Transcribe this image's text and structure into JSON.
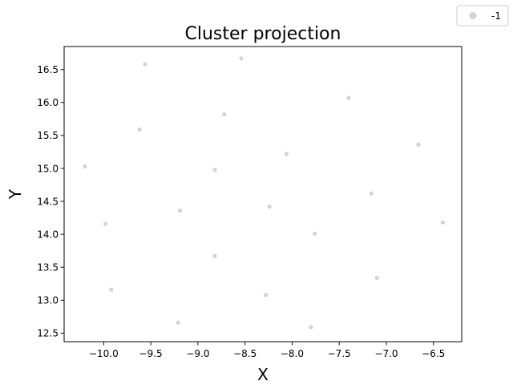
{
  "chart_data": {
    "type": "scatter",
    "title": "Cluster projection",
    "xlabel": "X",
    "ylabel": "Y",
    "xlim": [
      -10.42,
      -6.2
    ],
    "ylim": [
      12.37,
      16.85
    ],
    "xticks": [
      -10.0,
      -9.5,
      -9.0,
      -8.5,
      -8.0,
      -7.5,
      -7.0,
      -6.5
    ],
    "xtick_labels": [
      "−10.0",
      "−9.5",
      "−9.0",
      "−8.5",
      "−8.0",
      "−7.5",
      "−7.0",
      "−6.5"
    ],
    "yticks": [
      12.5,
      13.0,
      13.5,
      14.0,
      14.5,
      15.0,
      15.5,
      16.0,
      16.5
    ],
    "ytick_labels": [
      "12.5",
      "13.0",
      "13.5",
      "14.0",
      "14.5",
      "15.0",
      "15.5",
      "16.0",
      "16.5"
    ],
    "grid": false,
    "legend": {
      "placement": "top-right",
      "entries": [
        {
          "label": "-1",
          "color": "#d3d3d3"
        }
      ]
    },
    "series": [
      {
        "name": "-1",
        "color": "#d3d3d3",
        "points": [
          [
            -10.2,
            15.03
          ],
          [
            -9.56,
            16.58
          ],
          [
            -8.54,
            16.67
          ],
          [
            -7.4,
            16.07
          ],
          [
            -8.72,
            15.82
          ],
          [
            -9.62,
            15.59
          ],
          [
            -6.66,
            15.36
          ],
          [
            -8.06,
            15.22
          ],
          [
            -8.82,
            14.98
          ],
          [
            -7.16,
            14.62
          ],
          [
            -8.24,
            14.42
          ],
          [
            -9.19,
            14.36
          ],
          [
            -9.98,
            14.16
          ],
          [
            -6.4,
            14.18
          ],
          [
            -7.76,
            14.01
          ],
          [
            -8.82,
            13.67
          ],
          [
            -7.1,
            13.34
          ],
          [
            -9.92,
            13.16
          ],
          [
            -8.28,
            13.08
          ],
          [
            -9.21,
            12.66
          ],
          [
            -7.8,
            12.59
          ]
        ]
      }
    ]
  }
}
